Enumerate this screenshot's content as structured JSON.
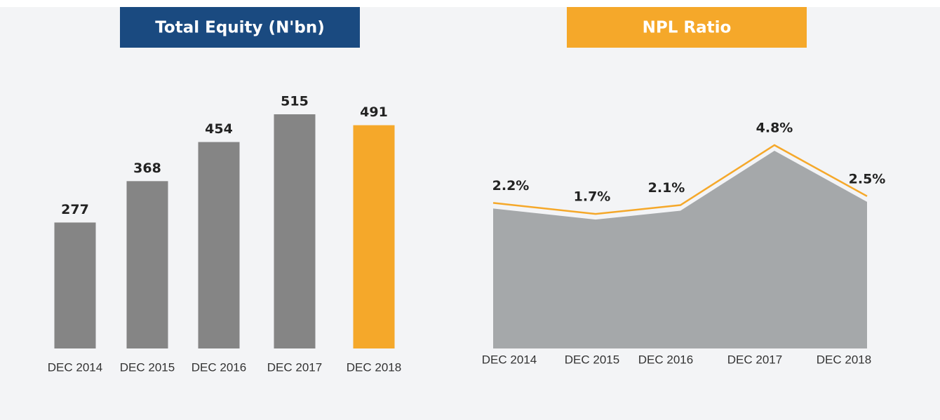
{
  "chart_data": [
    {
      "type": "bar",
      "title": "Total Equity (N'bn)",
      "categories": [
        "DEC 2014",
        "DEC 2015",
        "DEC 2016",
        "DEC 2017",
        "DEC 2018"
      ],
      "values": [
        277,
        368,
        454,
        515,
        491
      ],
      "colors": [
        "#858585",
        "#858585",
        "#858585",
        "#858585",
        "#f5a82a"
      ],
      "title_color": "#1a4a80"
    },
    {
      "type": "area",
      "title": "NPL Ratio",
      "categories": [
        "DEC 2014",
        "DEC 2015",
        "DEC 2016",
        "DEC 2017",
        "DEC 2018"
      ],
      "values": [
        2.2,
        1.7,
        2.1,
        4.8,
        2.5
      ],
      "value_labels": [
        "2.2%",
        "1.7%",
        "2.1%",
        "4.8%",
        "2.5%"
      ],
      "color": "#a5a8aa",
      "line_color": "#f5a82a",
      "title_color": "#f5a82a"
    }
  ]
}
